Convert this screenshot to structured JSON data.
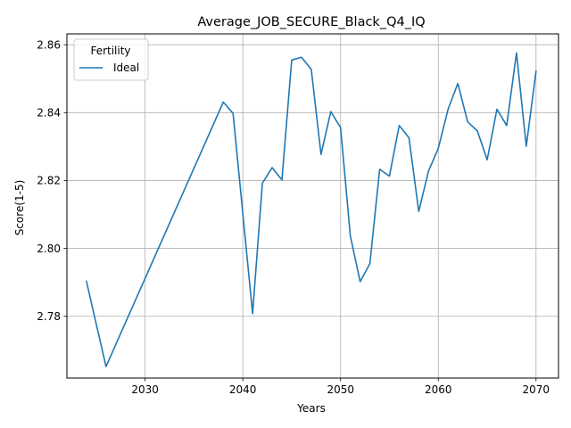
{
  "chart_data": {
    "type": "line",
    "title": "Average_JOB_SECURE_Black_Q4_IQ",
    "xlabel": "Years",
    "ylabel": "Score(1-5)",
    "xlim": [
      2022,
      2072.3
    ],
    "ylim": [
      2.7618,
      2.8632
    ],
    "x_ticks": [
      2030,
      2040,
      2050,
      2060,
      2070
    ],
    "y_ticks": [
      2.78,
      2.8,
      2.82,
      2.84,
      2.86
    ],
    "x_tick_labels": [
      "2030",
      "2040",
      "2050",
      "2060",
      "2070"
    ],
    "y_tick_labels": [
      "2.78",
      "2.80",
      "2.82",
      "2.84",
      "2.86"
    ],
    "grid": true,
    "legend": {
      "title": "Fertility",
      "placement": "top-left"
    },
    "series": [
      {
        "name": "Ideal",
        "color": "#1f77b4",
        "x": [
          2024,
          2026,
          2038,
          2039,
          2040,
          2041,
          2042,
          2043,
          2044,
          2045,
          2046,
          2047,
          2048,
          2049,
          2050,
          2051,
          2052,
          2053,
          2054,
          2055,
          2056,
          2057,
          2058,
          2059,
          2060,
          2061,
          2062,
          2063,
          2064,
          2065,
          2066,
          2067,
          2068,
          2069,
          2070
        ],
        "y": [
          2.7903,
          2.7652,
          2.8431,
          2.8398,
          2.8102,
          2.7808,
          2.8192,
          2.8238,
          2.8202,
          2.8555,
          2.8563,
          2.8528,
          2.8277,
          2.8403,
          2.8356,
          2.8037,
          2.7902,
          2.7955,
          2.8233,
          2.8213,
          2.8362,
          2.8326,
          2.8109,
          2.8228,
          2.8295,
          2.841,
          2.8486,
          2.8373,
          2.8346,
          2.8261,
          2.841,
          2.8362,
          2.8576,
          2.8301,
          2.8522
        ]
      }
    ]
  }
}
